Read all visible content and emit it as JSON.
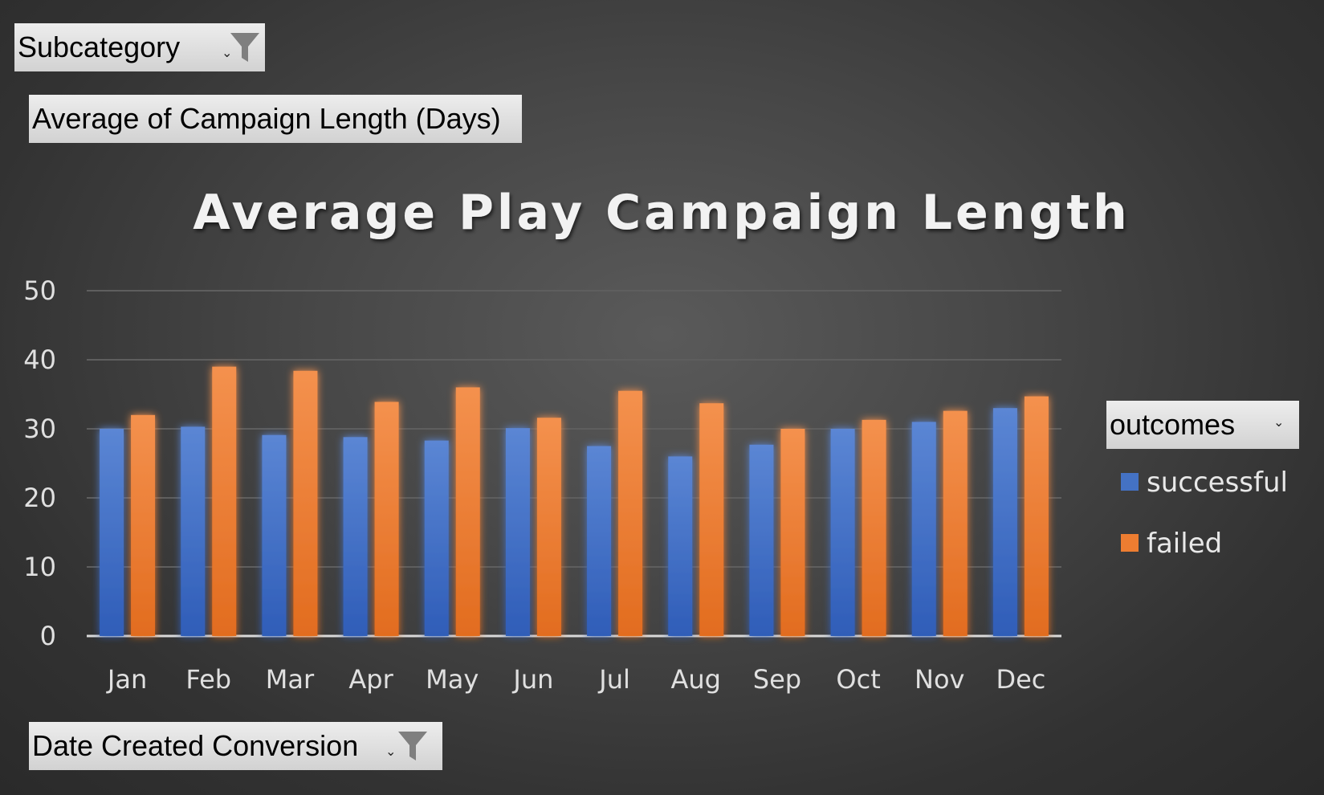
{
  "filters": {
    "subcategory_label": "Subcategory",
    "value_field_label": "Average of Campaign Length (Days)",
    "date_field_label": "Date Created Conversion",
    "outcomes_label": "outcomes"
  },
  "colors": {
    "successful": "#4472c4",
    "failed": "#ed7d31"
  },
  "icons": {
    "filter": "funnel-filter-icon",
    "dropdown": "dropdown-arrow-icon"
  },
  "chart_data": {
    "type": "bar",
    "title": "Average Play Campaign Length",
    "xlabel": "",
    "ylabel": "",
    "ylim": [
      0,
      50
    ],
    "yticks": [
      "0",
      "10",
      "20",
      "30",
      "40",
      "50"
    ],
    "grid": true,
    "legend_position": "right",
    "categories": [
      "Jan",
      "Feb",
      "Mar",
      "Apr",
      "May",
      "Jun",
      "Jul",
      "Aug",
      "Sep",
      "Oct",
      "Nov",
      "Dec"
    ],
    "series": [
      {
        "name": "successful",
        "values": [
          30.0,
          30.3,
          29.1,
          28.8,
          28.3,
          30.1,
          27.5,
          26.0,
          27.7,
          30.0,
          31.0,
          33.0
        ]
      },
      {
        "name": "failed",
        "values": [
          32.0,
          39.0,
          38.4,
          33.9,
          36.0,
          31.6,
          35.5,
          33.7,
          30.0,
          31.3,
          32.6,
          34.7
        ]
      }
    ]
  }
}
